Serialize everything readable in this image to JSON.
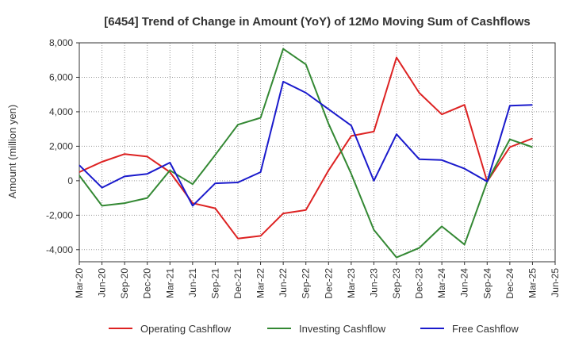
{
  "chart_data": {
    "type": "line",
    "title": "[6454]  Trend of Change in Amount (YoY) of 12Mo Moving Sum of Cashflows",
    "xlabel": "",
    "ylabel": "Amount (million yen)",
    "ylim": [
      -4700,
      8000
    ],
    "yticks": [
      -4000,
      -2000,
      0,
      2000,
      4000,
      6000,
      8000
    ],
    "ytick_labels": [
      "-4,000",
      "-2,000",
      "0",
      "2,000",
      "4,000",
      "6,000",
      "8,000"
    ],
    "grid": true,
    "legend_position": "bottom",
    "categories": [
      "Mar-20",
      "Jun-20",
      "Sep-20",
      "Dec-20",
      "Mar-21",
      "Jun-21",
      "Sep-21",
      "Dec-21",
      "Mar-22",
      "Jun-22",
      "Sep-22",
      "Dec-22",
      "Mar-23",
      "Jun-23",
      "Sep-23",
      "Dec-23",
      "Mar-24",
      "Jun-24",
      "Sep-24",
      "Dec-24",
      "Mar-25",
      "Jun-25"
    ],
    "series": [
      {
        "name": "Operating Cashflow",
        "color": "#dd2222",
        "values": [
          500,
          1100,
          1550,
          1400,
          500,
          -1300,
          -1600,
          -3350,
          -3200,
          -1900,
          -1700,
          600,
          2600,
          2850,
          7150,
          5100,
          3850,
          4400,
          -50,
          1950,
          2450,
          null
        ]
      },
      {
        "name": "Investing Cashflow",
        "color": "#338833",
        "values": [
          300,
          -1450,
          -1300,
          -1000,
          600,
          -200,
          1500,
          3250,
          3650,
          7650,
          6750,
          3300,
          400,
          -2850,
          -4450,
          -3900,
          -2650,
          -3700,
          -50,
          2400,
          1950,
          null
        ]
      },
      {
        "name": "Free Cashflow",
        "color": "#1a1acc",
        "values": [
          900,
          -400,
          250,
          400,
          1050,
          -1450,
          -150,
          -100,
          500,
          5750,
          5100,
          4150,
          3200,
          0,
          2700,
          1250,
          1200,
          700,
          -50,
          4350,
          4400,
          null
        ]
      }
    ]
  }
}
